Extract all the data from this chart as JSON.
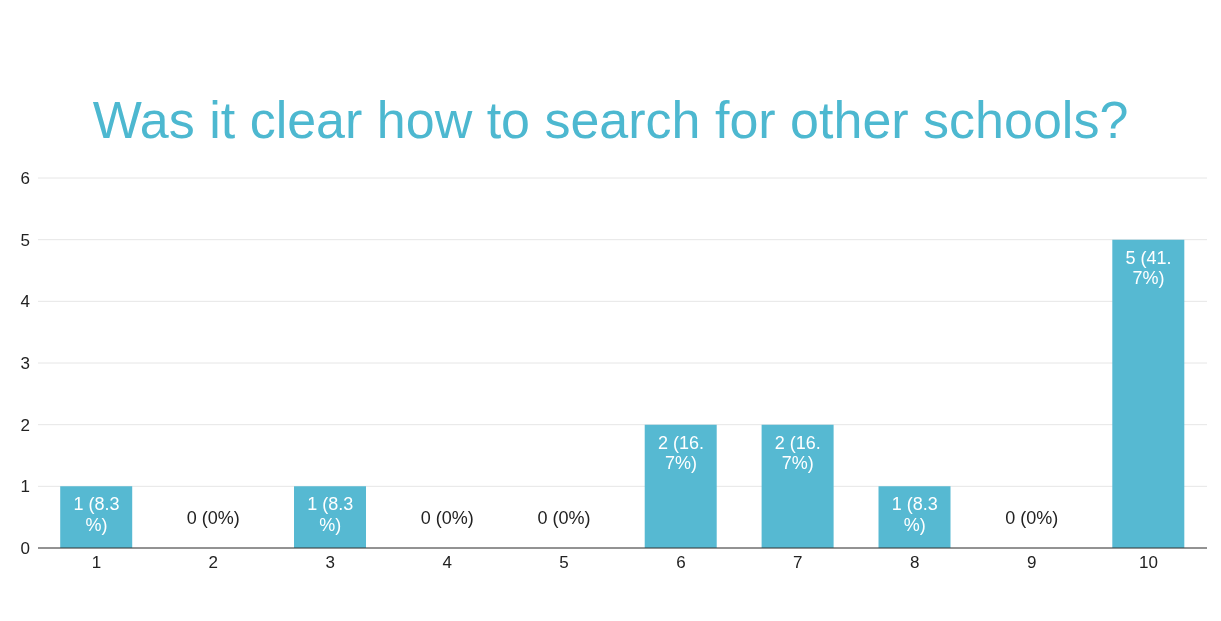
{
  "chart_data": {
    "type": "bar",
    "title": "Was it clear how to search for other schools?",
    "categories": [
      "1",
      "2",
      "3",
      "4",
      "5",
      "6",
      "7",
      "8",
      "9",
      "10"
    ],
    "values": [
      1,
      0,
      1,
      0,
      0,
      2,
      2,
      1,
      0,
      5
    ],
    "value_labels": [
      "1 (8.3%)",
      "0 (0%)",
      "1 (8.3%)",
      "0 (0%)",
      "0 (0%)",
      "2 (16.7%)",
      "2 (16.7%)",
      "1 (8.3%)",
      "0 (0%)",
      "5 (41.7%)"
    ],
    "color": "#56b9d2",
    "ylim": [
      0,
      6
    ],
    "yticks": [
      0,
      1,
      2,
      3,
      4,
      5,
      6
    ],
    "grid": "y"
  }
}
